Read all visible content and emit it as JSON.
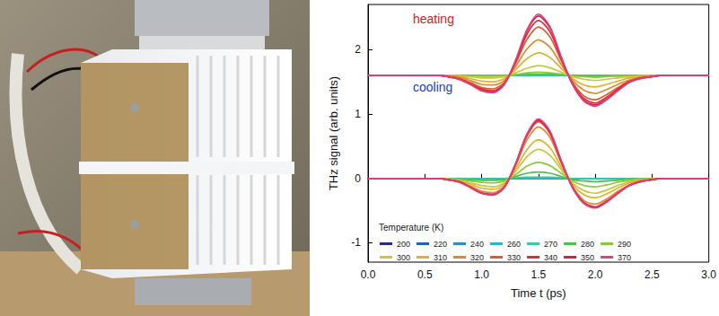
{
  "chart_data": {
    "type": "line",
    "xlabel": "Time t (ps)",
    "ylabel": "THz signal (arb. units)",
    "xlim": [
      0,
      3
    ],
    "xticks": [
      {
        "value": 0,
        "label": "0.0"
      },
      {
        "value": 0.5,
        "label": "0.5"
      },
      {
        "value": 1,
        "label": "1.0"
      },
      {
        "value": 1.5,
        "label": "1.5"
      },
      {
        "value": 2,
        "label": "2.0"
      },
      {
        "value": 2.5,
        "label": "2.5"
      },
      {
        "value": 3,
        "label": "3.0"
      }
    ],
    "ylim": [
      -1.3,
      2.7
    ],
    "yticks": [
      -1,
      0,
      1,
      2
    ],
    "grid": false,
    "legend": "lower left",
    "legend_title": "Temperature (K)",
    "x": [
      0,
      0.6,
      0.7,
      0.8,
      0.9,
      1.0,
      1.1,
      1.2,
      1.3,
      1.4,
      1.5,
      1.6,
      1.7,
      1.8,
      1.9,
      2.0,
      2.1,
      2.2,
      2.3,
      2.4,
      2.5,
      2.6,
      3.0
    ],
    "groups": [
      {
        "annotation": "heating",
        "color": "#d42020",
        "series": [
          {
            "name": "200",
            "color": "#1f2f8a",
            "values": [
              1.6,
              1.6,
              1.6,
              1.6,
              1.6,
              1.6,
              1.6,
              1.6,
              1.6,
              1.6,
              1.6,
              1.6,
              1.6,
              1.6,
              1.6,
              1.6,
              1.6,
              1.6,
              1.6,
              1.6,
              1.6,
              1.6,
              1.6
            ]
          },
          {
            "name": "220",
            "color": "#1f5fbf",
            "values": [
              1.6,
              1.6,
              1.6,
              1.6,
              1.6,
              1.6,
              1.6,
              1.6,
              1.6,
              1.6,
              1.6,
              1.6,
              1.6,
              1.6,
              1.6,
              1.6,
              1.6,
              1.6,
              1.6,
              1.6,
              1.6,
              1.6,
              1.6
            ]
          },
          {
            "name": "240",
            "color": "#2a8fbf",
            "values": [
              1.6,
              1.6,
              1.6,
              1.6,
              1.6,
              1.6,
              1.6,
              1.6,
              1.6,
              1.6,
              1.6,
              1.6,
              1.6,
              1.6,
              1.6,
              1.6,
              1.6,
              1.6,
              1.6,
              1.6,
              1.6,
              1.6,
              1.6
            ]
          },
          {
            "name": "260",
            "color": "#2ab5c8",
            "values": [
              1.6,
              1.6,
              1.6,
              1.6,
              1.6,
              1.6,
              1.6,
              1.6,
              1.6,
              1.6,
              1.6,
              1.6,
              1.6,
              1.6,
              1.6,
              1.6,
              1.6,
              1.6,
              1.6,
              1.6,
              1.6,
              1.6,
              1.6
            ]
          },
          {
            "name": "270",
            "color": "#3cc8a0",
            "values": [
              1.6,
              1.6,
              1.6,
              1.6,
              1.6,
              1.6,
              1.6,
              1.6,
              1.6,
              1.6,
              1.6,
              1.6,
              1.6,
              1.6,
              1.6,
              1.6,
              1.6,
              1.6,
              1.6,
              1.6,
              1.6,
              1.6,
              1.6
            ]
          },
          {
            "name": "280",
            "color": "#4cbf4c",
            "values": [
              1.6,
              1.6,
              1.6,
              1.6,
              1.6,
              1.59,
              1.59,
              1.6,
              1.61,
              1.62,
              1.62,
              1.62,
              1.61,
              1.6,
              1.59,
              1.59,
              1.59,
              1.59,
              1.6,
              1.6,
              1.6,
              1.6,
              1.6
            ]
          },
          {
            "name": "290",
            "color": "#8cc83c",
            "values": [
              1.6,
              1.6,
              1.6,
              1.6,
              1.59,
              1.59,
              1.59,
              1.59,
              1.61,
              1.64,
              1.65,
              1.64,
              1.62,
              1.59,
              1.58,
              1.57,
              1.58,
              1.59,
              1.59,
              1.6,
              1.6,
              1.6,
              1.6
            ]
          },
          {
            "name": "300",
            "color": "#c8c83c",
            "values": [
              1.6,
              1.6,
              1.6,
              1.59,
              1.58,
              1.56,
              1.56,
              1.58,
              1.64,
              1.71,
              1.75,
              1.72,
              1.65,
              1.58,
              1.54,
              1.52,
              1.54,
              1.56,
              1.58,
              1.59,
              1.6,
              1.6,
              1.6
            ]
          },
          {
            "name": "310",
            "color": "#e0b030",
            "values": [
              1.6,
              1.6,
              1.59,
              1.58,
              1.55,
              1.51,
              1.5,
              1.55,
              1.69,
              1.86,
              1.95,
              1.88,
              1.71,
              1.55,
              1.45,
              1.42,
              1.46,
              1.51,
              1.56,
              1.58,
              1.59,
              1.6,
              1.6
            ]
          },
          {
            "name": "320",
            "color": "#e08a30",
            "values": [
              1.6,
              1.6,
              1.59,
              1.57,
              1.52,
              1.46,
              1.45,
              1.52,
              1.74,
              2.01,
              2.15,
              2.04,
              1.77,
              1.52,
              1.37,
              1.32,
              1.38,
              1.46,
              1.53,
              1.57,
              1.59,
              1.6,
              1.6
            ]
          },
          {
            "name": "330",
            "color": "#e05a30",
            "values": [
              1.6,
              1.6,
              1.58,
              1.55,
              1.49,
              1.41,
              1.39,
              1.49,
              1.79,
              2.16,
              2.35,
              2.2,
              1.83,
              1.49,
              1.28,
              1.22,
              1.3,
              1.41,
              1.51,
              1.56,
              1.58,
              1.6,
              1.6
            ]
          },
          {
            "name": "340",
            "color": "#d83030",
            "values": [
              1.6,
              1.6,
              1.58,
              1.55,
              1.47,
              1.39,
              1.36,
              1.47,
              1.81,
              2.24,
              2.45,
              2.28,
              1.86,
              1.47,
              1.24,
              1.17,
              1.26,
              1.39,
              1.5,
              1.56,
              1.58,
              1.6,
              1.6
            ]
          },
          {
            "name": "350",
            "color": "#d02050",
            "values": [
              1.6,
              1.6,
              1.58,
              1.54,
              1.46,
              1.37,
              1.34,
              1.46,
              1.83,
              2.29,
              2.52,
              2.34,
              1.88,
              1.46,
              1.21,
              1.14,
              1.23,
              1.37,
              1.49,
              1.55,
              1.58,
              1.6,
              1.6
            ]
          },
          {
            "name": "370",
            "color": "#e04080",
            "values": [
              1.6,
              1.6,
              1.58,
              1.54,
              1.46,
              1.36,
              1.33,
              1.46,
              1.84,
              2.31,
              2.55,
              2.36,
              1.89,
              1.46,
              1.2,
              1.12,
              1.22,
              1.36,
              1.49,
              1.55,
              1.58,
              1.6,
              1.6
            ]
          }
        ]
      },
      {
        "annotation": "cooling",
        "color": "#2040c0",
        "series": [
          {
            "name": "200",
            "color": "#1f2f8a",
            "values": [
              0,
              0,
              0,
              0,
              0,
              0,
              0,
              0,
              0,
              0,
              0,
              0,
              0,
              0,
              0,
              0,
              0,
              0,
              0,
              0,
              0,
              0,
              0
            ]
          },
          {
            "name": "220",
            "color": "#1f5fbf",
            "values": [
              0,
              0,
              0,
              0,
              0,
              0,
              0,
              0,
              0,
              0,
              0,
              0,
              0,
              0,
              0,
              0,
              0,
              0,
              0,
              0,
              0,
              0,
              0
            ]
          },
          {
            "name": "240",
            "color": "#2a8fbf",
            "values": [
              0,
              0,
              0,
              0,
              0,
              0,
              0,
              0,
              0,
              0,
              0,
              0,
              0,
              0,
              0,
              0,
              0,
              0,
              0,
              0,
              0,
              0,
              0
            ]
          },
          {
            "name": "260",
            "color": "#2ab5c8",
            "values": [
              0,
              0,
              0,
              0,
              0,
              0,
              0,
              0,
              0,
              0,
              0,
              0,
              0,
              0,
              0,
              0,
              0,
              0,
              0,
              0,
              0,
              0,
              0
            ]
          },
          {
            "name": "270",
            "color": "#3cc8a0",
            "values": [
              0,
              0,
              0,
              0,
              0,
              -0.01,
              -0.01,
              0,
              0.01,
              0.02,
              0.02,
              0.02,
              0.01,
              0,
              -0.01,
              -0.01,
              -0.01,
              -0.01,
              0,
              0,
              0,
              0,
              0
            ]
          },
          {
            "name": "280",
            "color": "#4cbf4c",
            "values": [
              0,
              0,
              0,
              -0.01,
              -0.02,
              -0.03,
              -0.03,
              -0.02,
              0.03,
              0.08,
              0.1,
              0.08,
              0.03,
              -0.02,
              -0.04,
              -0.05,
              -0.04,
              -0.03,
              -0.01,
              -0.01,
              0,
              0,
              0
            ]
          },
          {
            "name": "290",
            "color": "#8cc83c",
            "values": [
              0,
              0,
              -0.01,
              -0.02,
              -0.04,
              -0.06,
              -0.07,
              -0.04,
              0.06,
              0.19,
              0.25,
              0.2,
              0.08,
              -0.04,
              -0.11,
              -0.13,
              -0.1,
              -0.06,
              -0.03,
              -0.01,
              -0.01,
              0,
              0
            ]
          },
          {
            "name": "300",
            "color": "#c8c83c",
            "values": [
              0,
              0,
              -0.01,
              -0.03,
              -0.07,
              -0.11,
              -0.13,
              -0.07,
              0.11,
              0.34,
              0.45,
              0.36,
              0.14,
              -0.07,
              -0.19,
              -0.23,
              -0.18,
              -0.11,
              -0.05,
              -0.02,
              -0.01,
              0,
              0
            ]
          },
          {
            "name": "310",
            "color": "#e0b030",
            "values": [
              0,
              0,
              -0.01,
              -0.04,
              -0.09,
              -0.15,
              -0.17,
              -0.09,
              0.15,
              0.45,
              0.6,
              0.48,
              0.18,
              -0.09,
              -0.25,
              -0.3,
              -0.24,
              -0.15,
              -0.07,
              -0.03,
              -0.01,
              0,
              0
            ]
          },
          {
            "name": "320",
            "color": "#e08a30",
            "values": [
              0,
              0,
              -0.02,
              -0.05,
              -0.12,
              -0.2,
              -0.22,
              -0.12,
              0.2,
              0.6,
              0.8,
              0.64,
              0.24,
              -0.12,
              -0.34,
              -0.4,
              -0.32,
              -0.2,
              -0.1,
              -0.04,
              -0.02,
              0,
              0
            ]
          },
          {
            "name": "330",
            "color": "#e05a30",
            "values": [
              0,
              0,
              -0.02,
              -0.05,
              -0.13,
              -0.22,
              -0.25,
              -0.13,
              0.22,
              0.66,
              0.88,
              0.7,
              0.26,
              -0.13,
              -0.37,
              -0.44,
              -0.35,
              -0.22,
              -0.11,
              -0.04,
              -0.02,
              0,
              0
            ]
          },
          {
            "name": "340",
            "color": "#d83030",
            "values": [
              0,
              0,
              -0.02,
              -0.05,
              -0.14,
              -0.23,
              -0.25,
              -0.14,
              0.23,
              0.68,
              0.9,
              0.72,
              0.27,
              -0.14,
              -0.38,
              -0.45,
              -0.36,
              -0.23,
              -0.11,
              -0.05,
              -0.02,
              0,
              0
            ]
          },
          {
            "name": "350",
            "color": "#d02050",
            "values": [
              0,
              0,
              -0.02,
              -0.05,
              -0.14,
              -0.23,
              -0.25,
              -0.14,
              0.23,
              0.68,
              0.9,
              0.72,
              0.27,
              -0.14,
              -0.38,
              -0.45,
              -0.36,
              -0.23,
              -0.11,
              -0.05,
              -0.02,
              0,
              0
            ]
          },
          {
            "name": "370",
            "color": "#e04080",
            "values": [
              0,
              0,
              -0.02,
              -0.06,
              -0.14,
              -0.23,
              -0.26,
              -0.14,
              0.23,
              0.69,
              0.92,
              0.74,
              0.28,
              -0.14,
              -0.39,
              -0.46,
              -0.37,
              -0.23,
              -0.11,
              -0.05,
              -0.02,
              0,
              0
            ]
          }
        ]
      }
    ]
  }
}
